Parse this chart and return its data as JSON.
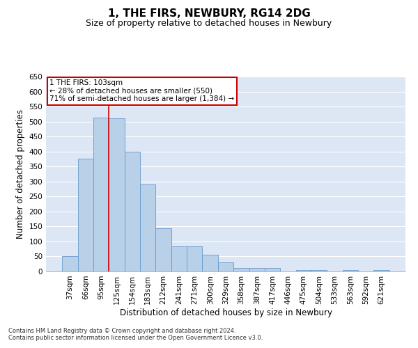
{
  "title": "1, THE FIRS, NEWBURY, RG14 2DG",
  "subtitle": "Size of property relative to detached houses in Newbury",
  "xlabel": "Distribution of detached houses by size in Newbury",
  "ylabel": "Number of detached properties",
  "categories": [
    "37sqm",
    "66sqm",
    "95sqm",
    "125sqm",
    "154sqm",
    "183sqm",
    "212sqm",
    "241sqm",
    "271sqm",
    "300sqm",
    "329sqm",
    "358sqm",
    "387sqm",
    "417sqm",
    "446sqm",
    "475sqm",
    "504sqm",
    "533sqm",
    "563sqm",
    "592sqm",
    "621sqm"
  ],
  "values": [
    50,
    375,
    513,
    510,
    400,
    290,
    143,
    83,
    83,
    55,
    30,
    12,
    12,
    12,
    0,
    5,
    5,
    0,
    5,
    0,
    5
  ],
  "bar_color": "#b8d0e8",
  "bar_edge_color": "#6699cc",
  "vline_color": "#cc0000",
  "annotation_text": "1 THE FIRS: 103sqm\n← 28% of detached houses are smaller (550)\n71% of semi-detached houses are larger (1,384) →",
  "annotation_box_color": "#cc0000",
  "ylim": [
    0,
    650
  ],
  "yticks": [
    0,
    50,
    100,
    150,
    200,
    250,
    300,
    350,
    400,
    450,
    500,
    550,
    600,
    650
  ],
  "background_color": "#dce6f5",
  "grid_color": "#ffffff",
  "footer_line1": "Contains HM Land Registry data © Crown copyright and database right 2024.",
  "footer_line2": "Contains public sector information licensed under the Open Government Licence v3.0.",
  "title_fontsize": 11,
  "subtitle_fontsize": 9,
  "xlabel_fontsize": 8.5,
  "ylabel_fontsize": 8.5,
  "tick_fontsize": 7.5,
  "footer_fontsize": 6,
  "vline_pos": 2.5
}
